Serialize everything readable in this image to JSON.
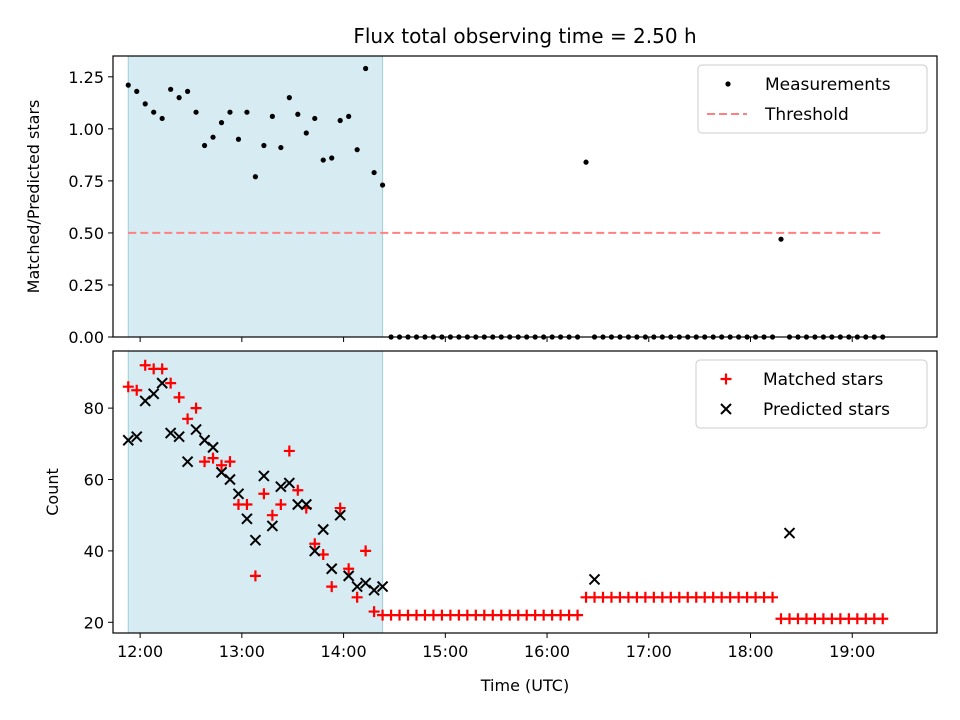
{
  "title": "Flux total observing time = 2.50 h",
  "chart_data": [
    {
      "type": "scatter",
      "panel": "top",
      "title": "Flux total observing time = 2.50 h",
      "xlabel": "",
      "ylabel": "Matched/Predicted stars",
      "xlim": [
        "11:44",
        "19:50"
      ],
      "ylim": [
        0,
        1.35
      ],
      "yticks": [
        "0.00",
        "0.25",
        "0.50",
        "0.75",
        "1.00",
        "1.25"
      ],
      "xticks": [
        "12:00",
        "13:00",
        "14:00",
        "15:00",
        "16:00",
        "17:00",
        "18:00",
        "19:00"
      ],
      "shaded_span": [
        "11:53",
        "14:23"
      ],
      "legend_position": "top-right",
      "grid": false,
      "series": [
        {
          "name": "Measurements",
          "color": "#000000",
          "marker": "dot",
          "x": [
            "11:53",
            "11:58",
            "12:03",
            "12:08",
            "12:13",
            "12:18",
            "12:23",
            "12:28",
            "12:33",
            "12:38",
            "12:43",
            "12:48",
            "12:53",
            "12:58",
            "13:03",
            "13:08",
            "13:13",
            "13:18",
            "13:23",
            "13:28",
            "13:33",
            "13:38",
            "13:43",
            "13:48",
            "13:53",
            "13:58",
            "14:03",
            "14:08",
            "14:13",
            "14:18",
            "14:23",
            "14:28",
            "14:33",
            "14:38",
            "14:43",
            "14:48",
            "14:53",
            "14:58",
            "15:03",
            "15:08",
            "15:13",
            "15:18",
            "15:23",
            "15:28",
            "15:33",
            "15:38",
            "15:43",
            "15:48",
            "15:53",
            "15:58",
            "16:03",
            "16:08",
            "16:13",
            "16:18",
            "16:23",
            "16:28",
            "16:33",
            "16:38",
            "16:43",
            "16:48",
            "16:53",
            "16:58",
            "17:03",
            "17:08",
            "17:13",
            "17:18",
            "17:23",
            "17:28",
            "17:33",
            "17:38",
            "17:43",
            "17:48",
            "17:53",
            "17:58",
            "18:03",
            "18:08",
            "18:13",
            "18:18",
            "18:23",
            "18:28",
            "18:33",
            "18:38",
            "18:43",
            "18:48",
            "18:53",
            "18:58",
            "19:03",
            "19:08",
            "19:13",
            "19:18"
          ],
          "y": [
            1.21,
            1.18,
            1.12,
            1.08,
            1.05,
            1.19,
            1.15,
            1.18,
            1.08,
            0.92,
            0.96,
            1.03,
            1.08,
            0.95,
            1.08,
            0.77,
            0.92,
            1.06,
            0.91,
            1.15,
            1.07,
            0.98,
            1.05,
            0.85,
            0.86,
            1.04,
            1.06,
            0.9,
            1.29,
            0.79,
            0.73,
            0,
            0,
            0,
            0,
            0,
            0,
            0,
            0,
            0,
            0,
            0,
            0,
            0,
            0,
            0,
            0,
            0,
            0,
            0,
            0,
            0,
            0,
            0,
            0.84,
            0,
            0,
            0,
            0,
            0,
            0,
            0,
            0,
            0,
            0,
            0,
            0,
            0,
            0,
            0,
            0,
            0,
            0,
            0,
            0,
            0,
            0,
            0.47,
            0,
            0,
            0,
            0,
            0,
            0,
            0,
            0,
            0,
            0,
            0,
            0
          ]
        },
        {
          "name": "Threshold",
          "color": "#ff8080",
          "style": "dashed",
          "x": [
            "11:53",
            "19:18"
          ],
          "y": [
            0.5,
            0.5
          ]
        }
      ]
    },
    {
      "type": "scatter",
      "panel": "bottom",
      "xlabel": "Time (UTC)",
      "ylabel": "Count",
      "xlim": [
        "11:44",
        "19:50"
      ],
      "ylim": [
        17,
        96
      ],
      "yticks": [
        "20",
        "40",
        "60",
        "80"
      ],
      "xticks": [
        "12:00",
        "13:00",
        "14:00",
        "15:00",
        "16:00",
        "17:00",
        "18:00",
        "19:00"
      ],
      "shaded_span": [
        "11:53",
        "14:23"
      ],
      "legend_position": "top-right",
      "grid": false,
      "series": [
        {
          "name": "Matched stars",
          "color": "#ff0000",
          "marker": "plus",
          "x": [
            "11:53",
            "11:58",
            "12:03",
            "12:08",
            "12:13",
            "12:18",
            "12:23",
            "12:28",
            "12:33",
            "12:38",
            "12:43",
            "12:48",
            "12:53",
            "12:58",
            "13:03",
            "13:08",
            "13:13",
            "13:18",
            "13:23",
            "13:28",
            "13:33",
            "13:38",
            "13:43",
            "13:48",
            "13:53",
            "13:58",
            "14:03",
            "14:08",
            "14:13",
            "14:18",
            "14:23",
            "14:28",
            "14:33",
            "14:38",
            "14:43",
            "14:48",
            "14:53",
            "14:58",
            "15:03",
            "15:08",
            "15:13",
            "15:18",
            "15:23",
            "15:28",
            "15:33",
            "15:38",
            "15:43",
            "15:48",
            "15:53",
            "15:58",
            "16:03",
            "16:08",
            "16:13",
            "16:18",
            "16:23",
            "16:28",
            "16:33",
            "16:38",
            "16:43",
            "16:48",
            "16:53",
            "16:58",
            "17:03",
            "17:08",
            "17:13",
            "17:18",
            "17:23",
            "17:28",
            "17:33",
            "17:38",
            "17:43",
            "17:48",
            "17:53",
            "17:58",
            "18:03",
            "18:08",
            "18:13",
            "18:18",
            "18:23",
            "18:28",
            "18:33",
            "18:38",
            "18:43",
            "18:48",
            "18:53",
            "18:58",
            "19:03",
            "19:08",
            "19:13",
            "19:18"
          ],
          "y": [
            86,
            85,
            92,
            91,
            91,
            87,
            83,
            77,
            80,
            65,
            66,
            64,
            65,
            53,
            53,
            33,
            56,
            50,
            53,
            68,
            57,
            52,
            42,
            39,
            30,
            52,
            35,
            27,
            40,
            23,
            22,
            22,
            22,
            22,
            22,
            22,
            22,
            22,
            22,
            22,
            22,
            22,
            22,
            22,
            22,
            22,
            22,
            22,
            22,
            22,
            22,
            22,
            22,
            22,
            27,
            27,
            27,
            27,
            27,
            27,
            27,
            27,
            27,
            27,
            27,
            27,
            27,
            27,
            27,
            27,
            27,
            27,
            27,
            27,
            27,
            27,
            27,
            21,
            21,
            21,
            21,
            21,
            21,
            21,
            21,
            21,
            21,
            21,
            21,
            21
          ]
        },
        {
          "name": "Predicted stars",
          "color": "#000000",
          "marker": "x",
          "x": [
            "11:53",
            "11:58",
            "12:03",
            "12:08",
            "12:13",
            "12:18",
            "12:23",
            "12:28",
            "12:33",
            "12:38",
            "12:43",
            "12:48",
            "12:53",
            "12:58",
            "13:03",
            "13:08",
            "13:13",
            "13:18",
            "13:23",
            "13:28",
            "13:33",
            "13:38",
            "13:43",
            "13:48",
            "13:53",
            "13:58",
            "14:03",
            "14:08",
            "14:13",
            "14:18",
            "14:23",
            "16:28",
            "18:23"
          ],
          "y": [
            71,
            72,
            82,
            84,
            87,
            73,
            72,
            65,
            74,
            71,
            69,
            62,
            60,
            56,
            49,
            43,
            61,
            47,
            58,
            59,
            53,
            53,
            40,
            46,
            35,
            50,
            33,
            30,
            31,
            29,
            30,
            32,
            45
          ]
        }
      ]
    }
  ]
}
